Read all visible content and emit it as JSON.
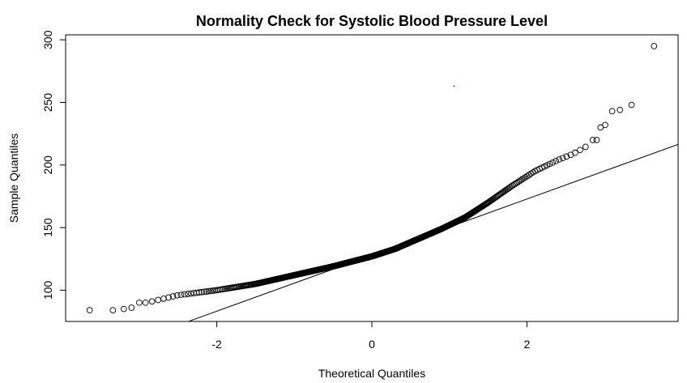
{
  "chart_data": {
    "type": "scatter",
    "title": "Normality Check for Systolic Blood Pressure Level",
    "xlabel": "Theoretical Quantiles",
    "ylabel": "Sample Quantiles",
    "xlim": [
      -3.95,
      3.95
    ],
    "ylim": [
      75,
      304
    ],
    "x_ticks": [
      -2,
      0,
      2
    ],
    "y_ticks": [
      100,
      150,
      200,
      250,
      300
    ],
    "x_tick_labels": [
      "-2",
      "0",
      "2"
    ],
    "y_tick_labels": [
      "100",
      "150",
      "200",
      "250",
      "300"
    ],
    "point_marker": "open-circle",
    "grid": false,
    "reference_line": {
      "intercept": 128,
      "slope": 22.4
    },
    "control_points": [
      [
        -3.64,
        84
      ],
      [
        -2.9,
        90
      ],
      [
        -2.5,
        96
      ],
      [
        -2.0,
        100
      ],
      [
        -1.5,
        105
      ],
      [
        -1.0,
        112
      ],
      [
        -0.5,
        119
      ],
      [
        0.0,
        127
      ],
      [
        0.3,
        133
      ],
      [
        0.6,
        141
      ],
      [
        0.9,
        149
      ],
      [
        1.2,
        158
      ],
      [
        1.5,
        170
      ],
      [
        1.8,
        183
      ],
      [
        2.1,
        195
      ],
      [
        2.4,
        204
      ],
      [
        2.6,
        209
      ],
      [
        2.8,
        216
      ]
    ],
    "tail_points": [
      [
        -3.64,
        84
      ],
      [
        -3.34,
        84
      ],
      [
        -3.2,
        85
      ],
      [
        -3.1,
        86
      ],
      [
        -3.0,
        90
      ],
      [
        -2.92,
        90
      ],
      [
        2.85,
        220
      ],
      [
        2.9,
        220
      ],
      [
        2.95,
        230
      ],
      [
        3.01,
        232
      ],
      [
        3.1,
        243
      ],
      [
        3.2,
        244
      ],
      [
        3.35,
        248
      ],
      [
        3.64,
        295
      ]
    ],
    "outlier_dot": [
      1.06,
      263
    ]
  }
}
